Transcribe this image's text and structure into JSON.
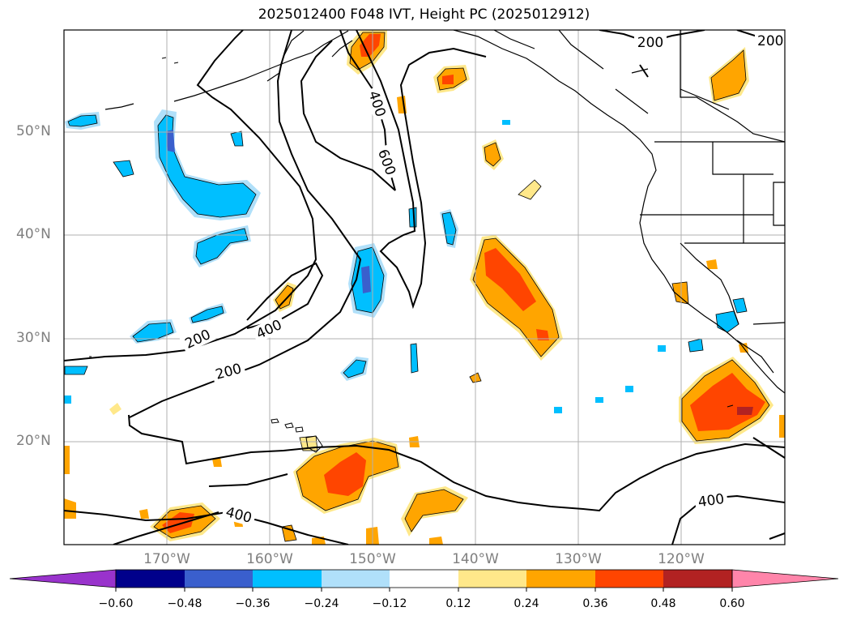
{
  "title": "2025012400 F048 IVT, Height PC (2025012912)",
  "map": {
    "lat_labels": [
      "50°N",
      "40°N",
      "30°N",
      "20°N"
    ],
    "lon_labels": [
      "170°W",
      "160°W",
      "150°W",
      "140°W",
      "130°W",
      "120°W"
    ],
    "gridlines": true,
    "contour_labels": [
      "200",
      "200",
      "200",
      "400",
      "400",
      "600",
      "400",
      "200"
    ]
  },
  "colorbar": {
    "ticks": [
      "−0.60",
      "−0.48",
      "−0.36",
      "−0.24",
      "−0.12",
      "0.12",
      "0.24",
      "0.36",
      "0.48",
      "0.60"
    ],
    "colors": [
      "#9933cc",
      "#00008b",
      "#3a5fcd",
      "#00bfff",
      "#b0e0fa",
      "#ffffff",
      "#ffe88a",
      "#ffa500",
      "#ff4500",
      "#b22222",
      "#ff85aa"
    ],
    "extend": "both"
  }
}
